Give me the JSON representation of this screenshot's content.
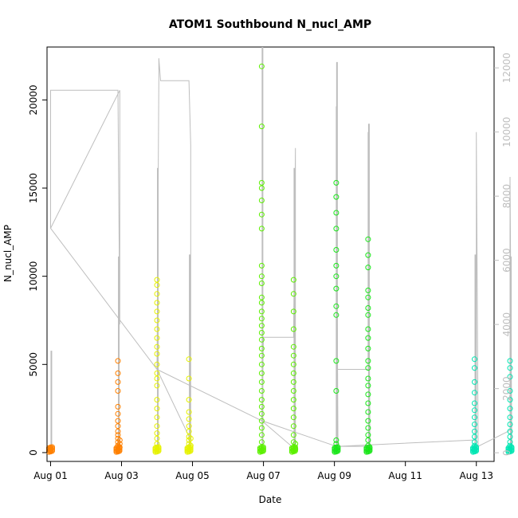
{
  "chart_data": {
    "type": "scatter",
    "title": "ATOM1 Southbound N_nucl_AMP",
    "xlabel": "Date",
    "ylabel": "N_nucl_AMP",
    "x_ticks": [
      "Aug 01",
      "Aug 03",
      "Aug 05",
      "Aug 07",
      "Aug 09",
      "Aug 11",
      "Aug 13"
    ],
    "x_tick_values": [
      0,
      2,
      4,
      6,
      8,
      10,
      12
    ],
    "xlim": [
      -0.1,
      12.5
    ],
    "y_ticks": [
      0,
      5000,
      10000,
      15000,
      20000
    ],
    "ylim": [
      -500,
      23000
    ],
    "y2_ticks": [
      0,
      2000,
      4000,
      6000,
      8000,
      10000,
      12000
    ],
    "y2lim": [
      -270,
      12650
    ],
    "grid": false,
    "legend": "none",
    "colors": {
      "line": "#bebebe",
      "orange": "#ff8000",
      "yellow": "#e6f200",
      "green": "#5cf000",
      "green2": "#19e619",
      "cyan": "#00e6b3"
    },
    "series": [
      {
        "x": 0.0,
        "points": [
          [
            0.0,
            150
          ],
          [
            0.0,
            220
          ],
          [
            0.0,
            100
          ],
          [
            0.0,
            300
          ],
          [
            0.0,
            60
          ]
        ],
        "color": "#ff8000"
      },
      {
        "x": 1.9,
        "points": [
          [
            1.9,
            5200
          ],
          [
            1.9,
            4500
          ],
          [
            1.9,
            4000
          ],
          [
            1.9,
            3500
          ],
          [
            1.9,
            2600
          ],
          [
            1.9,
            2200
          ],
          [
            1.9,
            1800
          ],
          [
            1.9,
            1500
          ],
          [
            1.9,
            1200
          ],
          [
            1.9,
            1000
          ],
          [
            1.9,
            800
          ],
          [
            1.9,
            600
          ],
          [
            1.9,
            400
          ],
          [
            1.9,
            300
          ],
          [
            1.9,
            200
          ],
          [
            1.9,
            100
          ],
          [
            1.9,
            50
          ],
          [
            1.95,
            300
          ],
          [
            1.95,
            500
          ],
          [
            1.95,
            700
          ]
        ],
        "color": "#ff8000"
      },
      {
        "x": 3.0,
        "points": [
          [
            3.0,
            9800
          ],
          [
            3.0,
            9500
          ],
          [
            3.0,
            9000
          ],
          [
            3.0,
            8500
          ],
          [
            3.0,
            8000
          ],
          [
            3.0,
            7500
          ],
          [
            3.0,
            7000
          ],
          [
            3.0,
            6500
          ],
          [
            3.0,
            6000
          ],
          [
            3.0,
            5600
          ],
          [
            3.0,
            5000
          ],
          [
            3.0,
            4500
          ],
          [
            3.0,
            4200
          ],
          [
            3.0,
            3800
          ],
          [
            3.0,
            3000
          ],
          [
            3.0,
            2500
          ],
          [
            3.0,
            2000
          ],
          [
            3.0,
            1500
          ],
          [
            3.0,
            1100
          ],
          [
            3.0,
            800
          ],
          [
            3.0,
            500
          ],
          [
            3.0,
            300
          ],
          [
            3.0,
            150
          ],
          [
            3.0,
            50
          ]
        ],
        "color": "#e6f200"
      },
      {
        "x": 3.9,
        "points": [
          [
            3.9,
            5300
          ],
          [
            3.9,
            4200
          ],
          [
            3.9,
            3000
          ],
          [
            3.9,
            2300
          ],
          [
            3.9,
            1900
          ],
          [
            3.9,
            1500
          ],
          [
            3.9,
            1200
          ],
          [
            3.9,
            900
          ],
          [
            3.9,
            700
          ],
          [
            3.9,
            500
          ],
          [
            3.9,
            300
          ],
          [
            3.9,
            150
          ],
          [
            3.9,
            50
          ],
          [
            3.95,
            400
          ],
          [
            3.95,
            800
          ]
        ],
        "color": "#e6f200"
      },
      {
        "x": 5.95,
        "points": [
          [
            5.95,
            21900
          ],
          [
            5.95,
            18500
          ],
          [
            5.95,
            15300
          ],
          [
            5.95,
            15000
          ],
          [
            5.95,
            14300
          ],
          [
            5.95,
            13500
          ],
          [
            5.95,
            12700
          ],
          [
            5.95,
            10600
          ],
          [
            5.95,
            10000
          ],
          [
            5.95,
            9600
          ],
          [
            5.95,
            8800
          ],
          [
            5.95,
            8500
          ],
          [
            5.95,
            8000
          ],
          [
            5.95,
            7600
          ],
          [
            5.95,
            7200
          ],
          [
            5.95,
            6800
          ],
          [
            5.95,
            6400
          ],
          [
            5.95,
            5900
          ],
          [
            5.95,
            5500
          ],
          [
            5.95,
            5000
          ],
          [
            5.95,
            4500
          ],
          [
            5.95,
            4000
          ],
          [
            5.95,
            3500
          ],
          [
            5.95,
            3000
          ],
          [
            5.95,
            2600
          ],
          [
            5.95,
            2200
          ],
          [
            5.95,
            1800
          ],
          [
            5.95,
            1400
          ],
          [
            5.95,
            1000
          ],
          [
            5.95,
            600
          ],
          [
            5.95,
            300
          ],
          [
            5.95,
            100
          ]
        ],
        "color": "#5cf000"
      },
      {
        "x": 6.85,
        "points": [
          [
            6.85,
            9800
          ],
          [
            6.85,
            9000
          ],
          [
            6.85,
            8000
          ],
          [
            6.85,
            7000
          ],
          [
            6.85,
            6000
          ],
          [
            6.85,
            5500
          ],
          [
            6.85,
            5000
          ],
          [
            6.85,
            4500
          ],
          [
            6.85,
            4000
          ],
          [
            6.85,
            3500
          ],
          [
            6.85,
            3000
          ],
          [
            6.85,
            2500
          ],
          [
            6.85,
            2000
          ],
          [
            6.85,
            1500
          ],
          [
            6.85,
            1000
          ],
          [
            6.85,
            600
          ],
          [
            6.85,
            300
          ],
          [
            6.85,
            100
          ],
          [
            6.9,
            200
          ],
          [
            6.9,
            500
          ]
        ],
        "color": "#5cf000"
      },
      {
        "x": 8.05,
        "points": [
          [
            8.05,
            15300
          ],
          [
            8.05,
            14500
          ],
          [
            8.05,
            13600
          ],
          [
            8.05,
            12700
          ],
          [
            8.05,
            11500
          ],
          [
            8.05,
            10600
          ],
          [
            8.05,
            10000
          ],
          [
            8.05,
            9300
          ],
          [
            8.05,
            8300
          ],
          [
            8.05,
            7800
          ],
          [
            8.05,
            5200
          ],
          [
            8.05,
            3500
          ],
          [
            8.05,
            700
          ],
          [
            8.05,
            500
          ],
          [
            8.05,
            300
          ],
          [
            8.05,
            150
          ],
          [
            8.05,
            50
          ]
        ],
        "color": "#19e619"
      },
      {
        "x": 8.95,
        "points": [
          [
            8.95,
            12100
          ],
          [
            8.95,
            11200
          ],
          [
            8.95,
            10500
          ],
          [
            8.95,
            9200
          ],
          [
            8.95,
            8800
          ],
          [
            8.95,
            8200
          ],
          [
            8.95,
            7800
          ],
          [
            8.95,
            7000
          ],
          [
            8.95,
            6500
          ],
          [
            8.95,
            5900
          ],
          [
            8.95,
            5200
          ],
          [
            8.95,
            4800
          ],
          [
            8.95,
            4200
          ],
          [
            8.95,
            3800
          ],
          [
            8.95,
            3300
          ],
          [
            8.95,
            2800
          ],
          [
            8.95,
            2300
          ],
          [
            8.95,
            1800
          ],
          [
            8.95,
            1400
          ],
          [
            8.95,
            1000
          ],
          [
            8.95,
            700
          ],
          [
            8.95,
            400
          ],
          [
            8.95,
            200
          ],
          [
            8.95,
            50
          ]
        ],
        "color": "#19e619"
      },
      {
        "x": 11.95,
        "points": [
          [
            11.95,
            5300
          ],
          [
            11.95,
            4800
          ],
          [
            11.95,
            4000
          ],
          [
            11.95,
            3400
          ],
          [
            11.95,
            2800
          ],
          [
            11.95,
            2400
          ],
          [
            11.95,
            2000
          ],
          [
            11.95,
            1600
          ],
          [
            11.95,
            1200
          ],
          [
            11.95,
            900
          ],
          [
            11.95,
            600
          ],
          [
            11.95,
            400
          ],
          [
            11.95,
            200
          ],
          [
            11.95,
            60
          ]
        ],
        "color": "#00e6b3"
      },
      {
        "x": 12.95,
        "points": [
          [
            12.95,
            5200
          ],
          [
            12.95,
            4800
          ],
          [
            12.95,
            4300
          ],
          [
            12.95,
            3500
          ],
          [
            12.95,
            3000
          ],
          [
            12.95,
            2500
          ],
          [
            12.95,
            2000
          ],
          [
            12.95,
            1600
          ],
          [
            12.95,
            1200
          ],
          [
            12.95,
            900
          ],
          [
            12.95,
            600
          ],
          [
            12.95,
            400
          ],
          [
            12.95,
            200
          ],
          [
            12.95,
            60
          ]
        ],
        "color": "#00e6b3"
      }
    ],
    "line_series": {
      "color": "#bebebe",
      "axis": "right",
      "points": [
        [
          0.0,
          7000
        ],
        [
          0.0,
          11300
        ],
        [
          1.9,
          11300
        ],
        [
          1.95,
          4000
        ],
        [
          1.95,
          11300
        ],
        [
          0.0,
          7000
        ],
        [
          3.0,
          2600
        ],
        [
          3.05,
          11600
        ],
        [
          3.05,
          12300
        ],
        [
          3.1,
          11600
        ],
        [
          3.9,
          11600
        ],
        [
          3.95,
          9600
        ],
        [
          3.95,
          400
        ],
        [
          3.0,
          2600
        ],
        [
          5.95,
          1000
        ],
        [
          6.0,
          3600
        ],
        [
          6.85,
          3600
        ],
        [
          6.9,
          9500
        ],
        [
          6.9,
          100
        ],
        [
          5.95,
          1000
        ],
        [
          8.05,
          200
        ],
        [
          8.05,
          10800
        ],
        [
          8.1,
          200
        ],
        [
          8.05,
          2600
        ],
        [
          8.95,
          2600
        ],
        [
          8.95,
          10000
        ],
        [
          9.0,
          200
        ],
        [
          8.1,
          200
        ],
        [
          12.0,
          400
        ],
        [
          12.0,
          9500
        ],
        [
          12.0,
          10000
        ],
        [
          12.05,
          200
        ],
        [
          12.95,
          700
        ],
        [
          12.95,
          8600
        ],
        [
          13.0,
          50
        ]
      ]
    }
  }
}
